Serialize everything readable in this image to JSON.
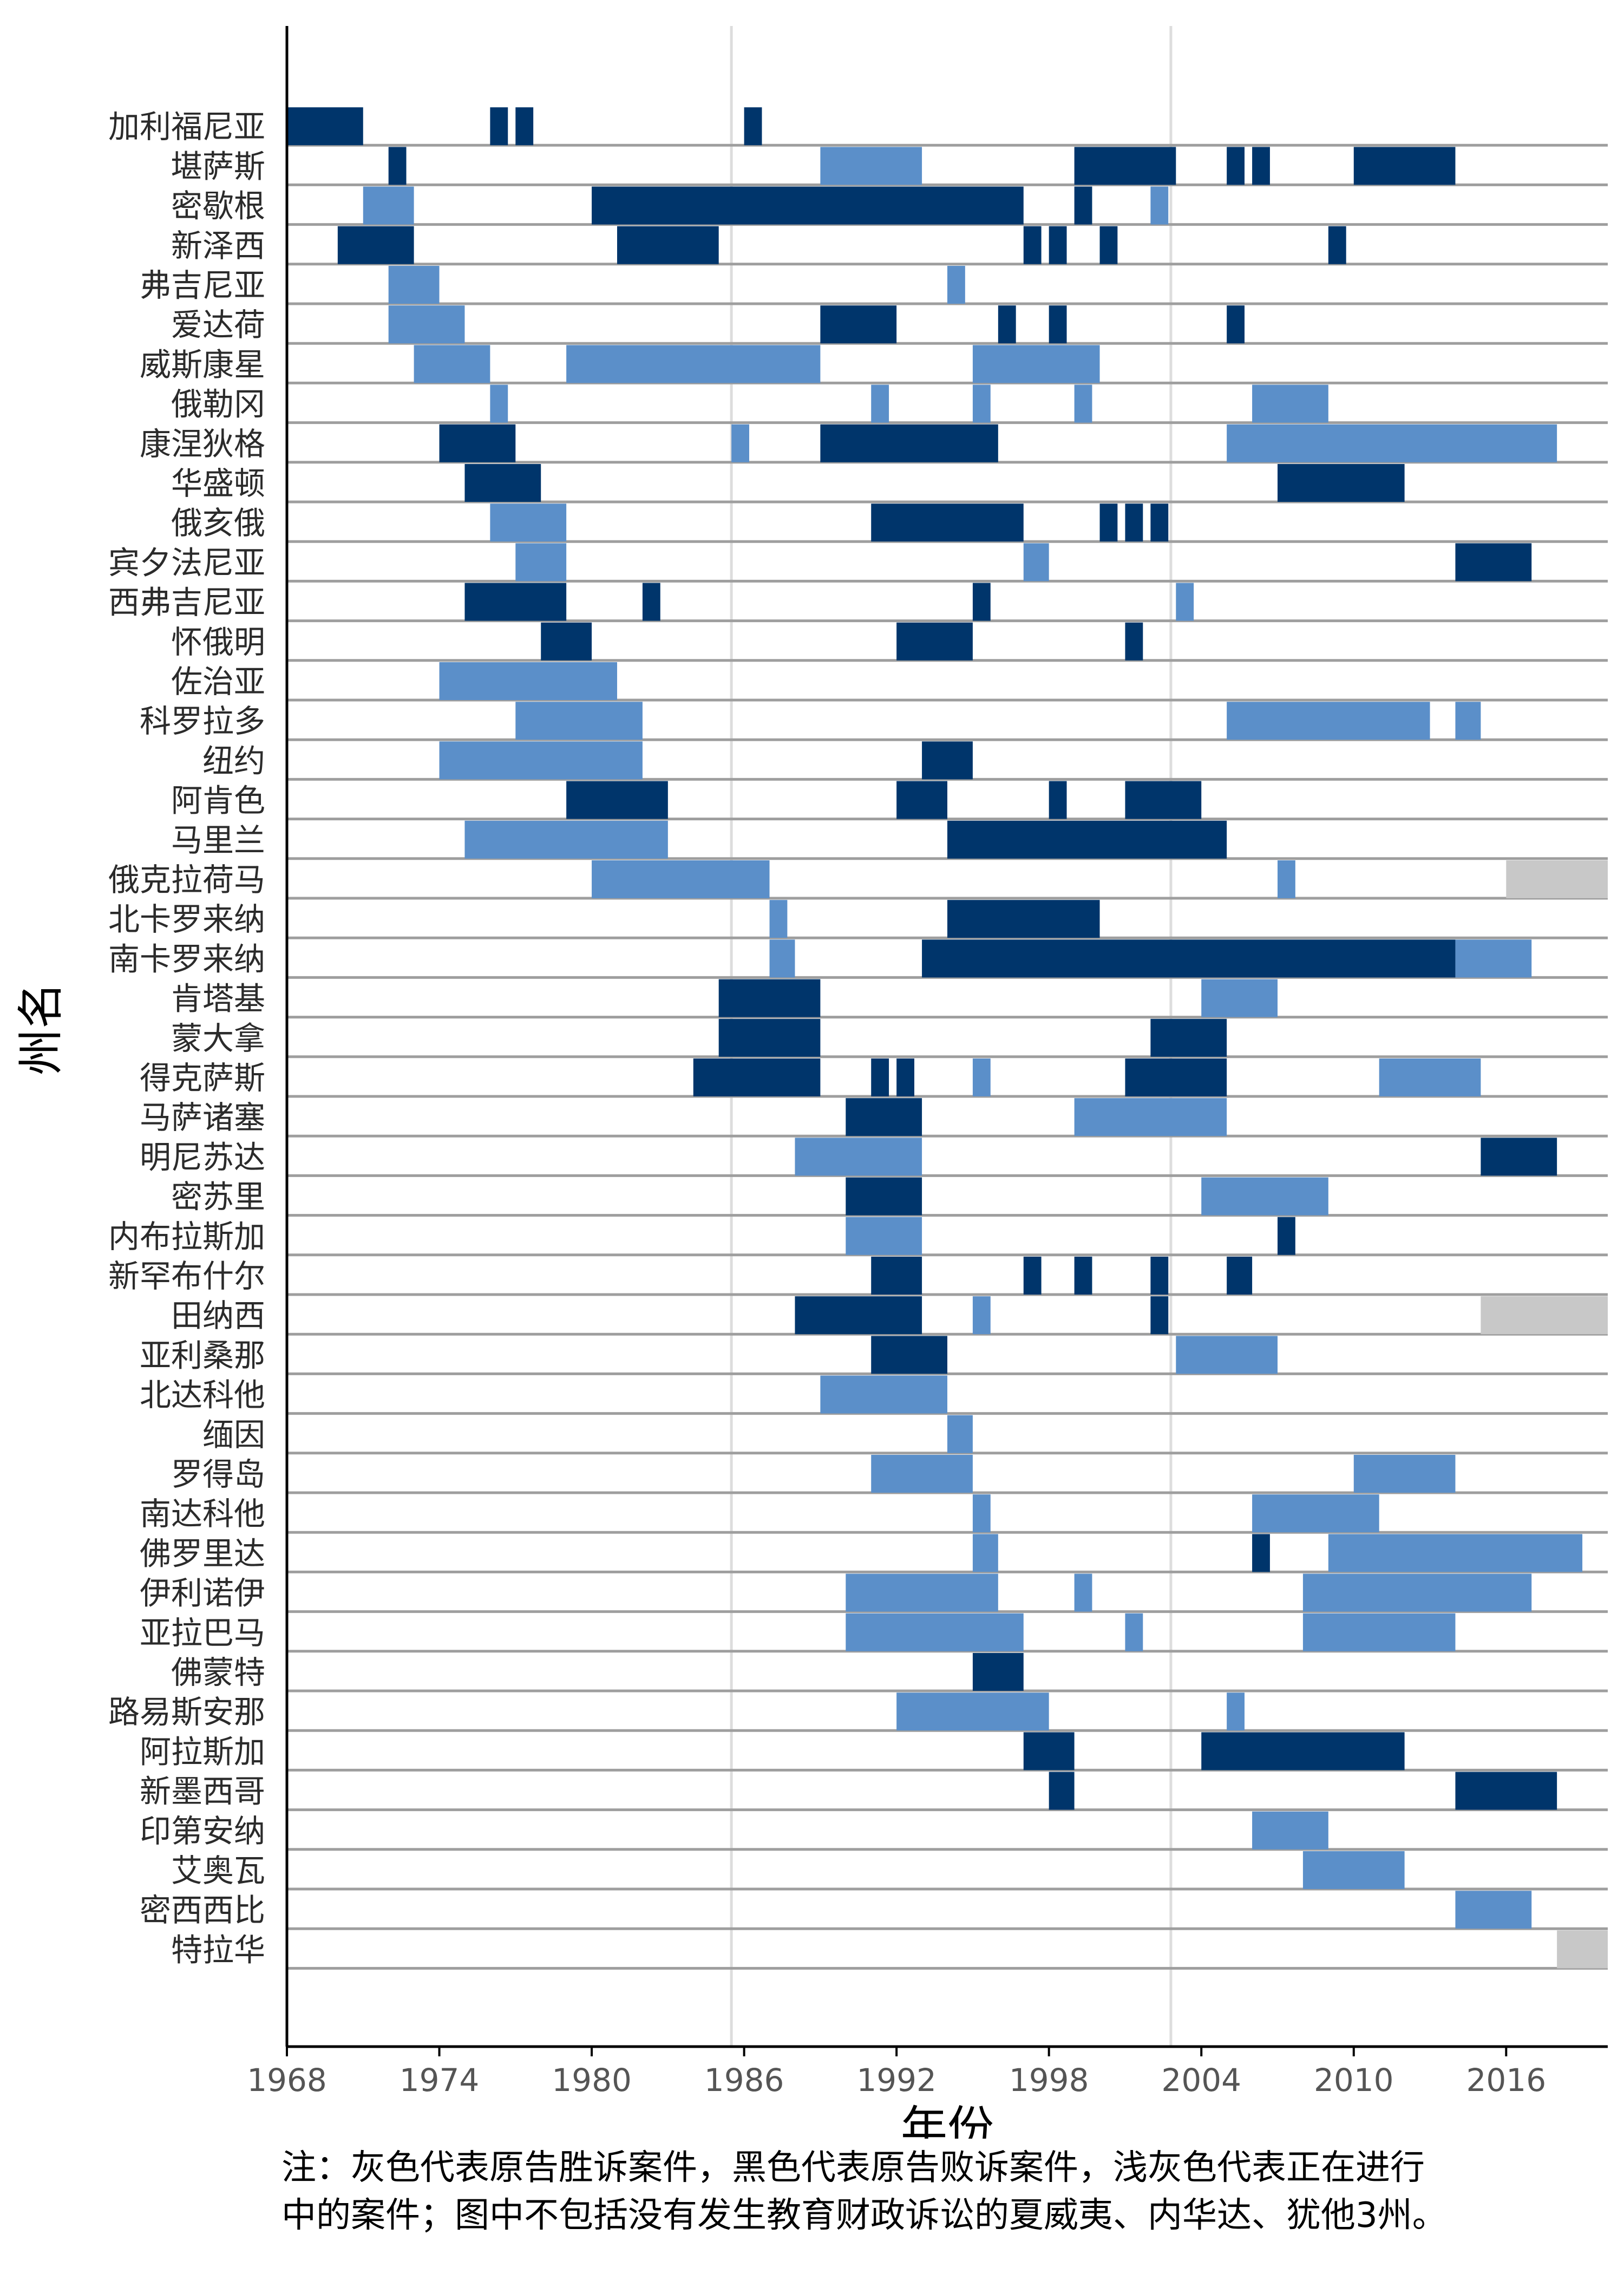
{
  "chart_data": {
    "type": "bar",
    "xlabel": "年份",
    "ylabel": "州名",
    "xlim": [
      1968,
      2020
    ],
    "x_ticks": [
      "1968",
      "1974",
      "1980",
      "1986",
      "1992",
      "1998",
      "2004",
      "2010",
      "2016"
    ],
    "vertical_gridlines": [
      1985.5,
      2002.8
    ],
    "colors": {
      "plaintiff_won": "#5b8fc9",
      "plaintiff_lost": "#00356b",
      "pending": "#c8c8c8",
      "row_line": "#9e9e9e",
      "grid": "#dddddd"
    },
    "categories": [
      "加利福尼亚",
      "堪萨斯",
      "密歇根",
      "新泽西",
      "弗吉尼亚",
      "爱达荷",
      "威斯康星",
      "俄勒冈",
      "康涅狄格",
      "华盛顿",
      "俄亥俄",
      "宾夕法尼亚",
      "西弗吉尼亚",
      "怀俄明",
      "佐治亚",
      "科罗拉多",
      "纽约",
      "阿肯色",
      "马里兰",
      "俄克拉荷马",
      "北卡罗来纳",
      "南卡罗来纳",
      "肯塔基",
      "蒙大拿",
      "得克萨斯",
      "马萨诸塞",
      "明尼苏达",
      "密苏里",
      "内布拉斯加",
      "新罕布什尔",
      "田纳西",
      "亚利桑那",
      "北达科他",
      "缅因",
      "罗得岛",
      "南达科他",
      "佛罗里达",
      "伊利诺伊",
      "亚拉巴马",
      "佛蒙特",
      "路易斯安那",
      "阿拉斯加",
      "新墨西哥",
      "印第安纳",
      "艾奥瓦",
      "密西西比",
      "特拉华"
    ],
    "segments": [
      [
        [
          "lost",
          1968,
          1971
        ],
        [
          "lost",
          1976,
          1976.7
        ],
        [
          "lost",
          1977,
          1977.7
        ],
        [
          "lost",
          1986,
          1986.7
        ]
      ],
      [
        [
          "lost",
          1972,
          1972.7
        ],
        [
          "won",
          1989,
          1993
        ],
        [
          "lost",
          1999,
          2003
        ],
        [
          "lost",
          2005,
          2005.7
        ],
        [
          "lost",
          2006,
          2006.7
        ],
        [
          "lost",
          2010,
          2014
        ]
      ],
      [
        [
          "won",
          1971,
          1973
        ],
        [
          "lost",
          1980,
          1997
        ],
        [
          "lost",
          1999,
          1999.7
        ],
        [
          "won",
          2002,
          2002.7
        ]
      ],
      [
        [
          "lost",
          1970,
          1973
        ],
        [
          "lost",
          1981,
          1985
        ],
        [
          "lost",
          1997,
          1997.7
        ],
        [
          "lost",
          1998,
          1998.7
        ],
        [
          "lost",
          2000,
          2000.7
        ],
        [
          "lost",
          2009,
          2009.7
        ]
      ],
      [
        [
          "won",
          1972,
          1974
        ],
        [
          "won",
          1994,
          1994.7
        ]
      ],
      [
        [
          "won",
          1972,
          1975
        ],
        [
          "lost",
          1989,
          1992
        ],
        [
          "lost",
          1996,
          1996.7
        ],
        [
          "lost",
          1998,
          1998.7
        ],
        [
          "lost",
          2005,
          2005.7
        ]
      ],
      [
        [
          "won",
          1973,
          1976
        ],
        [
          "won",
          1979,
          1989
        ],
        [
          "won",
          1995,
          2000
        ]
      ],
      [
        [
          "won",
          1976,
          1976.7
        ],
        [
          "won",
          1991,
          1991.7
        ],
        [
          "won",
          1995,
          1995.7
        ],
        [
          "won",
          1999,
          1999.7
        ],
        [
          "won",
          2006,
          2009
        ]
      ],
      [
        [
          "lost",
          1974,
          1977
        ],
        [
          "won",
          1985.5,
          1986.2
        ],
        [
          "lost",
          1989,
          1996
        ],
        [
          "won",
          2005,
          2018
        ]
      ],
      [
        [
          "lost",
          1975,
          1978
        ],
        [
          "lost",
          2007,
          2012
        ]
      ],
      [
        [
          "won",
          1976,
          1979
        ],
        [
          "lost",
          1991,
          1997
        ],
        [
          "lost",
          2000,
          2000.7
        ],
        [
          "lost",
          2001,
          2001.7
        ],
        [
          "lost",
          2002,
          2002.7
        ]
      ],
      [
        [
          "won",
          1977,
          1979
        ],
        [
          "won",
          1997,
          1998
        ],
        [
          "lost",
          2014,
          2017
        ]
      ],
      [
        [
          "lost",
          1975,
          1979
        ],
        [
          "lost",
          1982,
          1982.7
        ],
        [
          "lost",
          1995,
          1995.7
        ],
        [
          "won",
          2003,
          2003.7
        ]
      ],
      [
        [
          "lost",
          1978,
          1980
        ],
        [
          "lost",
          1992,
          1995
        ],
        [
          "lost",
          2001,
          2001.7
        ]
      ],
      [
        [
          "won",
          1974,
          1981
        ]
      ],
      [
        [
          "won",
          1977,
          1982
        ],
        [
          "won",
          2005,
          2013
        ],
        [
          "won",
          2014,
          2015
        ]
      ],
      [
        [
          "won",
          1974,
          1982
        ],
        [
          "lost",
          1993,
          1995
        ]
      ],
      [
        [
          "lost",
          1979,
          1983
        ],
        [
          "lost",
          1992,
          1994
        ],
        [
          "lost",
          1998,
          1998.7
        ],
        [
          "lost",
          2001,
          2004
        ]
      ],
      [
        [
          "won",
          1975,
          1983
        ],
        [
          "lost",
          1994,
          2005
        ]
      ],
      [
        [
          "won",
          1980,
          1987
        ],
        [
          "won",
          2007,
          2007.7
        ],
        [
          "pending",
          2016,
          2020
        ]
      ],
      [
        [
          "won",
          1987,
          1987.7
        ],
        [
          "lost",
          1994,
          2000
        ]
      ],
      [
        [
          "won",
          1987,
          1988
        ],
        [
          "lost",
          1993,
          2014
        ],
        [
          "won",
          2014,
          2017
        ]
      ],
      [
        [
          "lost",
          1985,
          1989
        ],
        [
          "won",
          2004,
          2007
        ]
      ],
      [
        [
          "lost",
          1985,
          1989
        ],
        [
          "lost",
          2002,
          2005
        ]
      ],
      [
        [
          "lost",
          1984,
          1989
        ],
        [
          "lost",
          1991,
          1991.7
        ],
        [
          "lost",
          1992,
          1992.7
        ],
        [
          "won",
          1995,
          1995.7
        ],
        [
          "lost",
          2001,
          2005
        ],
        [
          "won",
          2011,
          2015
        ]
      ],
      [
        [
          "lost",
          1990,
          1993
        ],
        [
          "won",
          1999,
          2005
        ]
      ],
      [
        [
          "won",
          1988,
          1993
        ],
        [
          "lost",
          2015,
          2018
        ]
      ],
      [
        [
          "lost",
          1990,
          1993
        ],
        [
          "won",
          2004,
          2009
        ]
      ],
      [
        [
          "won",
          1990,
          1993
        ],
        [
          "lost",
          2007,
          2007.7
        ]
      ],
      [
        [
          "lost",
          1991,
          1993
        ],
        [
          "lost",
          1997,
          1997.7
        ],
        [
          "lost",
          1999,
          1999.7
        ],
        [
          "lost",
          2002,
          2002.7
        ],
        [
          "lost",
          2005,
          2006
        ]
      ],
      [
        [
          "lost",
          1988,
          1993
        ],
        [
          "won",
          1995,
          1995.7
        ],
        [
          "lost",
          2002,
          2002.7
        ],
        [
          "pending",
          2015,
          2020
        ]
      ],
      [
        [
          "lost",
          1991,
          1994
        ],
        [
          "won",
          2003,
          2007
        ]
      ],
      [
        [
          "won",
          1989,
          1994
        ]
      ],
      [
        [
          "won",
          1994,
          1995
        ]
      ],
      [
        [
          "won",
          1991,
          1995
        ],
        [
          "won",
          2010,
          2014
        ]
      ],
      [
        [
          "won",
          1995,
          1995.7
        ],
        [
          "won",
          2006,
          2011
        ]
      ],
      [
        [
          "won",
          1995,
          1996
        ],
        [
          "lost",
          2006,
          2006.7
        ],
        [
          "won",
          2009,
          2019
        ]
      ],
      [
        [
          "won",
          1990,
          1996
        ],
        [
          "won",
          1999,
          1999.7
        ],
        [
          "won",
          2008,
          2017
        ]
      ],
      [
        [
          "won",
          1990,
          1997
        ],
        [
          "won",
          2001,
          2001.7
        ],
        [
          "won",
          2008,
          2014
        ]
      ],
      [
        [
          "lost",
          1995,
          1997
        ]
      ],
      [
        [
          "won",
          1992,
          1998
        ],
        [
          "won",
          2005,
          2005.7
        ]
      ],
      [
        [
          "lost",
          1997,
          1999
        ],
        [
          "lost",
          2004,
          2012
        ]
      ],
      [
        [
          "lost",
          1998,
          1999
        ],
        [
          "lost",
          2014,
          2018
        ]
      ],
      [
        [
          "won",
          2006,
          2009
        ]
      ],
      [
        [
          "won",
          2008,
          2012
        ]
      ],
      [
        [
          "won",
          2014,
          2017
        ]
      ],
      [
        [
          "pending",
          2018,
          2020
        ]
      ]
    ]
  },
  "note": {
    "line1": "注：灰色代表原告胜诉案件，黑色代表原告败诉案件，浅灰色代表正在进行",
    "line2": "中的案件；图中不包括没有发生教育财政诉讼的夏威夷、内华达、犹他3州。"
  }
}
